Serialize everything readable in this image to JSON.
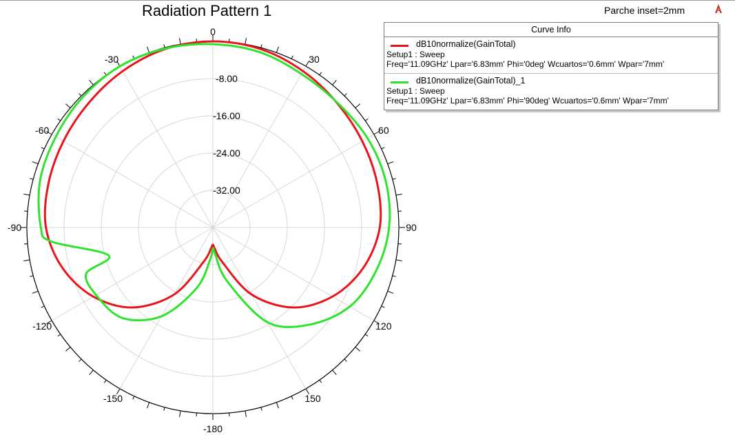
{
  "title": "Radiation Pattern 1",
  "project_label": "Parche inset=2mm",
  "app_icon": "ansys-logo-icon",
  "legend": {
    "header": "Curve Info",
    "entries": [
      {
        "name": "dB10normalize(GainTotal)",
        "setup": "Setup1 : Sweep",
        "params": "Freq='11.09GHz' Lpar='6.83mm' Phi='0deg' Wcuartos='0.6mm' Wpar='7mm'",
        "color": "#e8141c"
      },
      {
        "name": "dB10normalize(GainTotal)_1",
        "setup": "Setup1 : Sweep",
        "params": "Freq='11.09GHz' Lpar='6.83mm' Phi='90deg' Wcuartos='0.6mm' Wpar='7mm'",
        "color": "#2ee32e"
      }
    ]
  },
  "chart_data": {
    "type": "polar",
    "title": "Radiation Pattern 1",
    "theta_ticks": [
      "0",
      "30",
      "60",
      "90",
      "120",
      "150",
      "-180",
      "-150",
      "-120",
      "-90",
      "-60",
      "-30"
    ],
    "r_ticks": [
      "-8.00",
      "-16.00",
      "-24.00",
      "-32.00"
    ],
    "r_range": [
      -40,
      0
    ],
    "grid": true,
    "series": [
      {
        "name": "dB10normalize(GainTotal)",
        "color": "#e8141c",
        "theta": [
          0,
          15,
          30,
          45,
          60,
          75,
          90,
          105,
          120,
          135,
          150,
          165,
          175,
          180,
          -175,
          -165,
          -150,
          -135,
          -120,
          -105,
          -90,
          -75,
          -60,
          -45,
          -30,
          -15
        ],
        "values": [
          0,
          -0.3,
          -1.2,
          -2.2,
          -2.9,
          -3.4,
          -4.1,
          -6.5,
          -10.3,
          -15.7,
          -23.4,
          -32.4,
          -35.5,
          -36.3,
          -35.5,
          -32.4,
          -23.4,
          -15.7,
          -10.3,
          -6.5,
          -4.1,
          -3.4,
          -2.9,
          -2.2,
          -1.2,
          -0.3
        ]
      },
      {
        "name": "dB10normalize(GainTotal)_1",
        "color": "#2ee32e",
        "theta": [
          0,
          15,
          30,
          45,
          60,
          75,
          90,
          105,
          120,
          135,
          150,
          165,
          175,
          180,
          -175,
          -165,
          -150,
          -135,
          -120,
          -110,
          -105,
          -95,
          -90,
          -75,
          -60,
          -45,
          -30,
          -15
        ],
        "values": [
          -0.6,
          -1.0,
          -1.9,
          -2.1,
          -1.6,
          -1.5,
          -2.1,
          -3.7,
          -6.0,
          -10.5,
          -16.5,
          -28.0,
          -34.2,
          -35.5,
          -33.0,
          -26.5,
          -18.0,
          -12.5,
          -11.0,
          -11.0,
          -16.8,
          -5.2,
          -3.0,
          -1.5,
          -1.0,
          -0.4,
          0,
          -0.2
        ]
      }
    ]
  }
}
